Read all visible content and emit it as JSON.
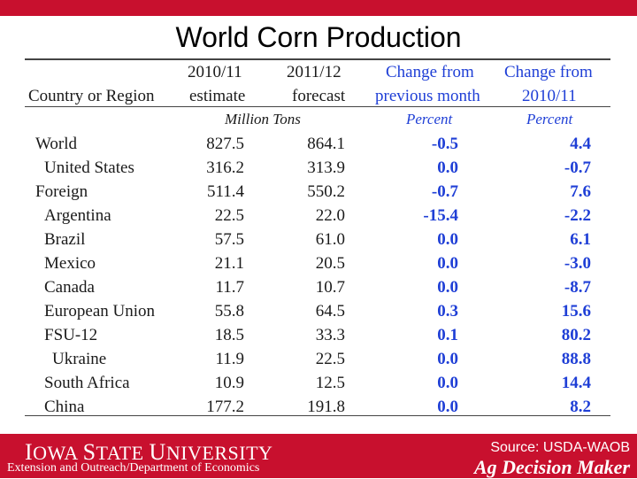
{
  "slide": {
    "title": "World Corn Production"
  },
  "table": {
    "headers": {
      "country": "Country or Region",
      "est_line1": "2010/11",
      "est_line2": "estimate",
      "fc_line1": "2011/12",
      "fc_line2": "forecast",
      "pm_line1": "Change from",
      "pm_line2": "previous month",
      "py_line1": "Change from",
      "py_line2": "2010/11"
    },
    "units": {
      "million_tons": "Million Tons",
      "pm_unit": "Percent",
      "py_unit": "Percent"
    },
    "rows": [
      {
        "name": "World",
        "est": "827.5",
        "fc": "864.1",
        "pm": "-0.5",
        "py": "4.4"
      },
      {
        "name": "United States",
        "est": "316.2",
        "fc": "313.9",
        "pm": "0.0",
        "py": "-0.7"
      },
      {
        "name": "Foreign",
        "est": "511.4",
        "fc": "550.2",
        "pm": "-0.7",
        "py": "7.6"
      },
      {
        "name": "Argentina",
        "est": "22.5",
        "fc": "22.0",
        "pm": "-15.4",
        "py": "-2.2"
      },
      {
        "name": "Brazil",
        "est": "57.5",
        "fc": "61.0",
        "pm": "0.0",
        "py": "6.1"
      },
      {
        "name": "Mexico",
        "est": "21.1",
        "fc": "20.5",
        "pm": "0.0",
        "py": "-3.0"
      },
      {
        "name": "Canada",
        "est": "11.7",
        "fc": "10.7",
        "pm": "0.0",
        "py": "-8.7"
      },
      {
        "name": "European Union",
        "est": "55.8",
        "fc": "64.5",
        "pm": "0.3",
        "py": "15.6"
      },
      {
        "name": "FSU-12",
        "est": "18.5",
        "fc": "33.3",
        "pm": "0.1",
        "py": "80.2"
      },
      {
        "name": "Ukraine",
        "est": "11.9",
        "fc": "22.5",
        "pm": "0.0",
        "py": "88.8"
      },
      {
        "name": "South Africa",
        "est": "10.9",
        "fc": "12.5",
        "pm": "0.0",
        "py": "14.4"
      },
      {
        "name": "China",
        "est": "177.2",
        "fc": "191.8",
        "pm": "0.0",
        "py": "8.2"
      }
    ]
  },
  "footer": {
    "logo_i": "I",
    "logo_owa": "OWA ",
    "logo_s": "S",
    "logo_tate": "TATE ",
    "logo_u": "U",
    "logo_niversity": "NIVERSITY",
    "subtitle": "Extension and Outreach/Department of Economics",
    "source": "Source: USDA-WAOB",
    "brand": "Ag Decision Maker"
  },
  "colors": {
    "brand_red": "#c8102e",
    "accent_blue": "#1f3fd6"
  }
}
